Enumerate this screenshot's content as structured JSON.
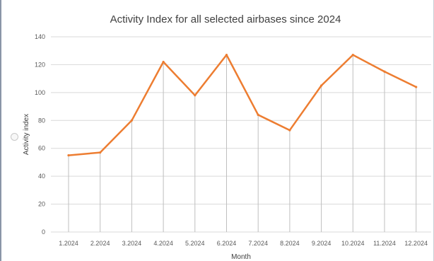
{
  "chart_data": {
    "type": "line",
    "title": "Activity Index for all selected airbases since 2024",
    "xlabel": "Month",
    "ylabel": "Activity index",
    "categories": [
      "1.2024",
      "2.2024",
      "3.2024",
      "4.2024",
      "5.2024",
      "6.2024",
      "7.2024",
      "8.2024",
      "9.2024",
      "10.2024",
      "11.2024",
      "12.2024"
    ],
    "series": [
      {
        "values": [
          55,
          57,
          80,
          122,
          98,
          127,
          84,
          73,
          105,
          127,
          115,
          104
        ]
      }
    ],
    "ylim": [
      0,
      140
    ],
    "yticks": [
      "0",
      "20",
      "40",
      "60",
      "80",
      "100",
      "120",
      "140"
    ],
    "grid": "horizontal gridlines; vertical drop lines at each point",
    "legend": "none",
    "colors": {
      "line": "#ED7D31",
      "grid": "#d9d9d9",
      "drop_line": "#bfbfbf"
    }
  }
}
